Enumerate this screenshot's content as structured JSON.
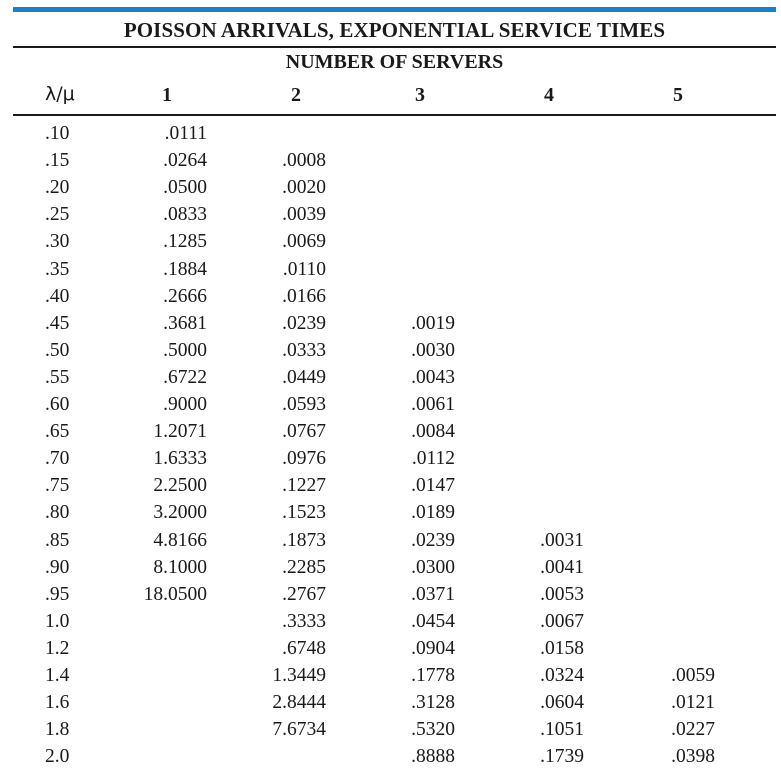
{
  "table": {
    "title": "POISSON ARRIVALS, EXPONENTIAL SERVICE TIMES",
    "subtitle": "NUMBER OF SERVERS",
    "headers": [
      "λ/μ",
      "1",
      "2",
      "3",
      "4",
      "5"
    ],
    "rows": [
      [
        ".10",
        ".0111",
        "",
        "",
        "",
        ""
      ],
      [
        ".15",
        ".0264",
        ".0008",
        "",
        "",
        ""
      ],
      [
        ".20",
        ".0500",
        ".0020",
        "",
        "",
        ""
      ],
      [
        ".25",
        ".0833",
        ".0039",
        "",
        "",
        ""
      ],
      [
        ".30",
        ".1285",
        ".0069",
        "",
        "",
        ""
      ],
      [
        ".35",
        ".1884",
        ".0110",
        "",
        "",
        ""
      ],
      [
        ".40",
        ".2666",
        ".0166",
        "",
        "",
        ""
      ],
      [
        ".45",
        ".3681",
        ".0239",
        ".0019",
        "",
        ""
      ],
      [
        ".50",
        ".5000",
        ".0333",
        ".0030",
        "",
        ""
      ],
      [
        ".55",
        ".6722",
        ".0449",
        ".0043",
        "",
        ""
      ],
      [
        ".60",
        ".9000",
        ".0593",
        ".0061",
        "",
        ""
      ],
      [
        ".65",
        "1.2071",
        ".0767",
        ".0084",
        "",
        ""
      ],
      [
        ".70",
        "1.6333",
        ".0976",
        ".0112",
        "",
        ""
      ],
      [
        ".75",
        "2.2500",
        ".1227",
        ".0147",
        "",
        ""
      ],
      [
        ".80",
        "3.2000",
        ".1523",
        ".0189",
        "",
        ""
      ],
      [
        ".85",
        "4.8166",
        ".1873",
        ".0239",
        ".0031",
        ""
      ],
      [
        ".90",
        "8.1000",
        ".2285",
        ".0300",
        ".0041",
        ""
      ],
      [
        ".95",
        "18.0500",
        ".2767",
        ".0371",
        ".0053",
        ""
      ],
      [
        "1.0",
        "",
        ".3333",
        ".0454",
        ".0067",
        ""
      ],
      [
        "1.2",
        "",
        ".6748",
        ".0904",
        ".0158",
        ""
      ],
      [
        "1.4",
        "",
        "1.3449",
        ".1778",
        ".0324",
        ".0059"
      ],
      [
        "1.6",
        "",
        "2.8444",
        ".3128",
        ".0604",
        ".0121"
      ],
      [
        "1.8",
        "",
        "7.6734",
        ".5320",
        ".1051",
        ".0227"
      ],
      [
        "2.0",
        "",
        "",
        ".8888",
        ".1739",
        ".0398"
      ]
    ]
  },
  "colors": {
    "accent_rule": "#1f7fc4",
    "text": "#1a1a1a"
  }
}
